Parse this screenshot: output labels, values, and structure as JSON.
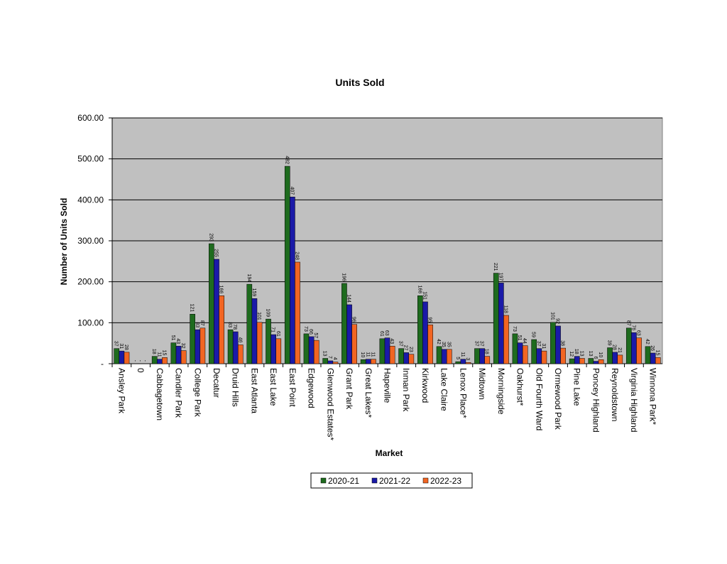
{
  "chart_data": {
    "type": "bar",
    "title": "Units Sold",
    "x_label": "Market",
    "y_label": "Number of Units Sold",
    "categories": [
      "Ansley Park",
      "0",
      "Cabbagetown",
      "Candler Park",
      "College Park",
      "Decatur",
      "Druid Hills",
      "East Atlanta",
      "East Lake",
      "East Point",
      "Edgewood",
      "Glenwood Estates*",
      "Grant Park",
      "Great Lakes*",
      "Hapeville",
      "Inman Park",
      "Kirkwood",
      "Lake Claire",
      "Lenox Place*",
      "Midtown",
      "Morningside",
      "Oakhurst*",
      "Old Fourth Ward",
      "Ormewood Park",
      "Pine Lake",
      "Poncey Highland",
      "Reynoldstown",
      "Virginia Highland",
      "Winnona Park*"
    ],
    "series": [
      {
        "name": "2020-21",
        "color": "#1e6b1e",
        "values": [
          37,
          0,
          18,
          51,
          121,
          293,
          83,
          194,
          109,
          482,
          73,
          13,
          196,
          10,
          61,
          37,
          166,
          42,
          5,
          37,
          221,
          73,
          59,
          101,
          12,
          13,
          39,
          87,
          42
        ],
        "value_labels": [
          "37",
          "-",
          "18",
          "51",
          "121",
          "293",
          "83",
          "194",
          "109",
          "482",
          "73",
          "13",
          "196",
          "10",
          "61",
          "37",
          "166",
          "42",
          "5",
          "37",
          "221",
          "73",
          "59",
          "101",
          "12",
          "13",
          "39",
          "87",
          "42"
        ]
      },
      {
        "name": "2021-22",
        "color": "#1a1aa8",
        "values": [
          31,
          0,
          11,
          43,
          83,
          255,
          78,
          159,
          71,
          407,
          66,
          7,
          144,
          11,
          63,
          27,
          151,
          35,
          11,
          37,
          197,
          51,
          37,
          92,
          18,
          6,
          28,
          76,
          26
        ],
        "value_labels": [
          "31",
          "-",
          "11",
          "43",
          "83",
          "255",
          "78",
          "159",
          "71",
          "407",
          "66",
          "7",
          "144",
          "11",
          "63",
          "27",
          "151",
          "35",
          "11",
          "37",
          "197",
          "51",
          "37",
          "92",
          "18",
          "6",
          "28",
          "76",
          "26"
        ]
      },
      {
        "name": "2022-23",
        "color": "#f26522",
        "values": [
          28,
          0,
          15,
          32,
          87,
          166,
          46,
          101,
          61,
          248,
          57,
          4,
          96,
          11,
          43,
          23,
          95,
          35,
          3,
          18,
          118,
          44,
          31,
          38,
          13,
          10,
          21,
          63,
          15
        ],
        "value_labels": [
          "28",
          "-",
          "15",
          "32",
          "87",
          "166",
          "46",
          "101",
          "61",
          "248",
          "57",
          "4",
          "96",
          "11",
          "43",
          "23",
          "95",
          "35",
          "3",
          "18",
          "118",
          "44",
          "31",
          "38",
          "13",
          "10",
          "21",
          "63",
          "15"
        ]
      }
    ],
    "ylim": [
      0,
      600
    ],
    "yticks": [
      {
        "value": 0,
        "label": "-"
      },
      {
        "value": 100,
        "label": "100.00"
      },
      {
        "value": 200,
        "label": "200.00"
      },
      {
        "value": 300,
        "label": "300.00"
      },
      {
        "value": 400,
        "label": "400.00"
      },
      {
        "value": 500,
        "label": "500.00"
      },
      {
        "value": 600,
        "label": "600.00"
      }
    ],
    "grid": true,
    "legend": "bottom"
  }
}
